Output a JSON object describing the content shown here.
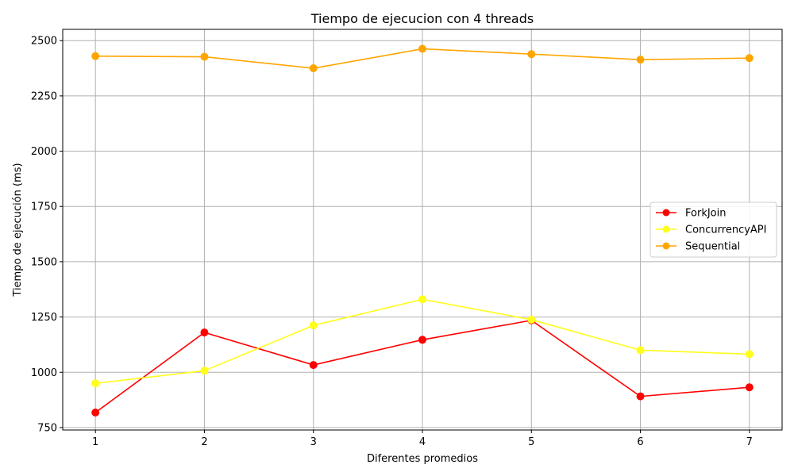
{
  "chart_data": {
    "type": "line",
    "title": "Tiempo de ejecucion con 4 threads",
    "xlabel": "Diferentes promedios",
    "ylabel": "Tiempo de ejecución (ms)",
    "x": [
      1,
      2,
      3,
      4,
      5,
      6,
      7
    ],
    "xticks": [
      "1",
      "2",
      "3",
      "4",
      "5",
      "6",
      "7"
    ],
    "yticks": [
      750,
      1000,
      1250,
      1500,
      1750,
      2000,
      2250,
      2500
    ],
    "ytick_labels": [
      "750",
      "1000",
      "1250",
      "1500",
      "1750",
      "2000",
      "2250",
      "2500"
    ],
    "xlim": [
      0.7,
      7.3
    ],
    "ylim": [
      739,
      2551
    ],
    "grid": true,
    "legend_position": "center-right",
    "series": [
      {
        "name": "ForkJoin",
        "color": "#ff0000",
        "marker": "circle",
        "values": [
          818,
          1180,
          1033,
          1147,
          1235,
          891,
          932
        ]
      },
      {
        "name": "ConcurrencyAPI",
        "color": "#ffff1a",
        "marker": "circle",
        "values": [
          950,
          1007,
          1212,
          1330,
          1238,
          1100,
          1082
        ]
      },
      {
        "name": "Sequential",
        "color": "#ffa500",
        "marker": "circle",
        "values": [
          2430,
          2427,
          2375,
          2463,
          2439,
          2414,
          2421
        ]
      }
    ]
  }
}
